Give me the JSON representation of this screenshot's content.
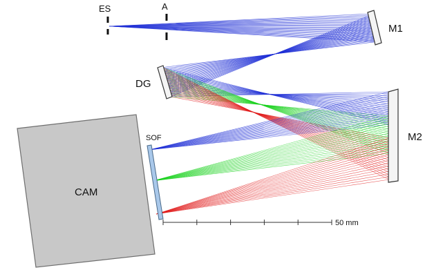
{
  "labels": {
    "entrance_slit": "ES",
    "aperture": "A",
    "mirror1": "M1",
    "grating": "DG",
    "mirror2": "M2",
    "filter": "SOF",
    "camera": "CAM",
    "scale": "50 mm"
  },
  "colors": {
    "blue": "#1f2fd6",
    "green": "#19d11e",
    "red": "#e01818",
    "camera_fill": "#c8c8c8",
    "camera_stroke": "#6e6e6e",
    "mirror_fill": "#f4f4f4",
    "mirror_stroke": "#333333",
    "filter_fill": "#a9c8ea",
    "filter_stroke": "#4a6a8a"
  },
  "scale_bar": {
    "length_mm": 50,
    "ticks": 6
  }
}
